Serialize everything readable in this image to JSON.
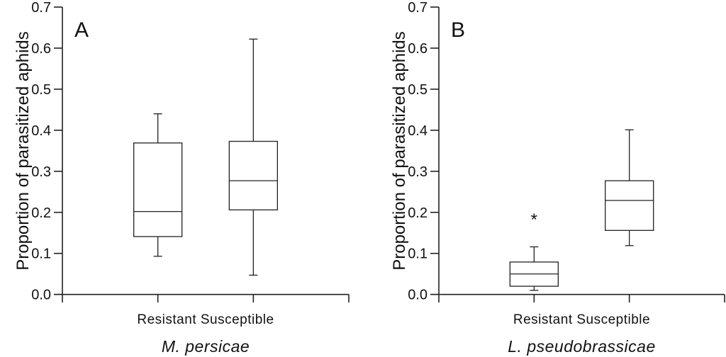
{
  "chart_data": [
    {
      "type": "boxplot",
      "panel_label": "A",
      "ylabel": "Proportion of parasitized aphids",
      "xlabel": "M. persicae",
      "ylim": [
        0,
        0.7
      ],
      "yticks": [
        "0.0",
        "0.1",
        "0.2",
        "0.3",
        "0.4",
        "0.5",
        "0.6",
        "0.7"
      ],
      "categories": [
        "Resistant",
        "Susceptible"
      ],
      "category_label_text": "Resistant Susceptible",
      "grid": false,
      "boxes": [
        {
          "category": "Resistant",
          "whisker_low": 0.093,
          "q1": 0.141,
          "median": 0.202,
          "q3": 0.369,
          "whisker_high": 0.44,
          "outliers": []
        },
        {
          "category": "Susceptible",
          "whisker_low": 0.047,
          "q1": 0.206,
          "median": 0.277,
          "q3": 0.373,
          "whisker_high": 0.622,
          "outliers": []
        }
      ]
    },
    {
      "type": "boxplot",
      "panel_label": "B",
      "ylabel": "Proportion of parasitized aphids",
      "xlabel": "L. pseudobrassicae",
      "ylim": [
        0,
        0.7
      ],
      "yticks": [
        "0.0",
        "0.1",
        "0.2",
        "0.3",
        "0.4",
        "0.5",
        "0.6",
        "0.7"
      ],
      "categories": [
        "Resistant",
        "Susceptible"
      ],
      "category_label_text": "Resistant Susceptible",
      "grid": false,
      "boxes": [
        {
          "category": "Resistant",
          "whisker_low": 0.01,
          "q1": 0.02,
          "median": 0.05,
          "q3": 0.079,
          "whisker_high": 0.116,
          "outliers": [
            0.193
          ],
          "outlier_marker": "*"
        },
        {
          "category": "Susceptible",
          "whisker_low": 0.119,
          "q1": 0.156,
          "median": 0.229,
          "q3": 0.277,
          "whisker_high": 0.401,
          "outliers": []
        }
      ]
    }
  ]
}
